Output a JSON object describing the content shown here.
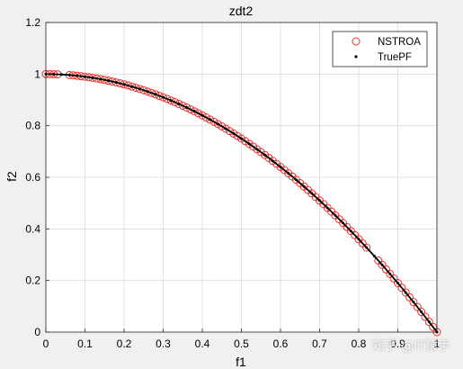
{
  "watermark": "知乎 @IT猿手",
  "chart_data": {
    "type": "scatter",
    "title": "zdt2",
    "xlabel": "f1",
    "ylabel": "f2",
    "xlim": [
      0,
      1
    ],
    "ylim": [
      0,
      1.2
    ],
    "xticks": [
      0,
      0.1,
      0.2,
      0.3,
      0.4,
      0.5,
      0.6,
      0.7,
      0.8,
      0.9,
      1
    ],
    "yticks": [
      0,
      0.2,
      0.4,
      0.6,
      0.8,
      1,
      1.2
    ],
    "xtick_labels": [
      "0",
      "0.1",
      "0.2",
      "0.3",
      "0.4",
      "0.5",
      "0.6",
      "0.7",
      "0.8",
      "0.9",
      "1"
    ],
    "ytick_labels": [
      "0",
      "0.2",
      "0.4",
      "0.6",
      "0.8",
      "1",
      "1.2"
    ],
    "grid": true,
    "legend_position": "top-right",
    "series": [
      {
        "name": "NSTROA",
        "marker": "circle-open",
        "color": "#e8312a",
        "x": [
          0,
          0.01,
          0.02,
          0.03,
          0.06,
          0.07,
          0.08,
          0.09,
          0.1,
          0.11,
          0.12,
          0.13,
          0.14,
          0.15,
          0.16,
          0.17,
          0.18,
          0.19,
          0.2,
          0.21,
          0.22,
          0.23,
          0.24,
          0.25,
          0.26,
          0.27,
          0.28,
          0.29,
          0.3,
          0.31,
          0.32,
          0.33,
          0.34,
          0.35,
          0.36,
          0.37,
          0.38,
          0.39,
          0.4,
          0.41,
          0.42,
          0.43,
          0.44,
          0.45,
          0.46,
          0.47,
          0.48,
          0.49,
          0.5,
          0.51,
          0.52,
          0.53,
          0.54,
          0.55,
          0.56,
          0.57,
          0.58,
          0.59,
          0.6,
          0.61,
          0.62,
          0.63,
          0.64,
          0.65,
          0.66,
          0.67,
          0.68,
          0.69,
          0.7,
          0.71,
          0.72,
          0.73,
          0.74,
          0.75,
          0.76,
          0.77,
          0.78,
          0.79,
          0.8,
          0.81,
          0.82,
          0.85,
          0.86,
          0.87,
          0.88,
          0.89,
          0.9,
          0.91,
          0.92,
          0.93,
          0.94,
          0.95,
          0.96,
          0.97,
          0.98,
          0.99,
          1
        ],
        "y": [
          1,
          0.9999,
          0.9996,
          0.9991,
          0.9964,
          0.9951,
          0.9936,
          0.9919,
          0.99,
          0.9879,
          0.9856,
          0.9831,
          0.9804,
          0.9775,
          0.9744,
          0.9711,
          0.9676,
          0.9639,
          0.96,
          0.9559,
          0.9516,
          0.9471,
          0.9424,
          0.9375,
          0.9324,
          0.9271,
          0.9216,
          0.9159,
          0.91,
          0.9039,
          0.8976,
          0.8911,
          0.8844,
          0.8775,
          0.8704,
          0.8631,
          0.8556,
          0.8479,
          0.84,
          0.8319,
          0.8236,
          0.8151,
          0.8064,
          0.7975,
          0.7884,
          0.7791,
          0.7696,
          0.7599,
          0.75,
          0.7399,
          0.7296,
          0.7191,
          0.7084,
          0.6975,
          0.6864,
          0.6751,
          0.6636,
          0.6519,
          0.64,
          0.6279,
          0.6156,
          0.6031,
          0.5904,
          0.5775,
          0.5644,
          0.5511,
          0.5376,
          0.5239,
          0.51,
          0.4959,
          0.4816,
          0.4671,
          0.4524,
          0.4375,
          0.4224,
          0.4071,
          0.3916,
          0.3759,
          0.36,
          0.3439,
          0.3276,
          0.2775,
          0.2604,
          0.2431,
          0.2256,
          0.2079,
          0.19,
          0.1719,
          0.1536,
          0.1351,
          0.1164,
          0.0975,
          0.0784,
          0.0591,
          0.0396,
          0.0199,
          0
        ]
      },
      {
        "name": "TruePF",
        "marker": "dot",
        "color": "#000000",
        "function": "f2 = 1 - f1^2",
        "x": [
          0,
          0.02,
          0.04,
          0.06,
          0.08,
          0.1,
          0.12,
          0.14,
          0.16,
          0.18,
          0.2,
          0.22,
          0.24,
          0.26,
          0.28,
          0.3,
          0.32,
          0.34,
          0.36,
          0.38,
          0.4,
          0.42,
          0.44,
          0.46,
          0.48,
          0.5,
          0.52,
          0.54,
          0.56,
          0.58,
          0.6,
          0.62,
          0.64,
          0.66,
          0.68,
          0.7,
          0.72,
          0.74,
          0.76,
          0.78,
          0.8,
          0.82,
          0.84,
          0.86,
          0.88,
          0.9,
          0.92,
          0.94,
          0.96,
          0.98,
          1
        ],
        "y": [
          1,
          0.9996,
          0.9984,
          0.9964,
          0.9936,
          0.99,
          0.9856,
          0.9804,
          0.9744,
          0.9676,
          0.96,
          0.9516,
          0.9424,
          0.9324,
          0.9216,
          0.91,
          0.8976,
          0.8844,
          0.8704,
          0.8556,
          0.84,
          0.8236,
          0.8064,
          0.7884,
          0.7696,
          0.75,
          0.7296,
          0.7084,
          0.6864,
          0.6636,
          0.64,
          0.6156,
          0.5904,
          0.5644,
          0.5376,
          0.51,
          0.4816,
          0.4524,
          0.4224,
          0.3916,
          0.36,
          0.3276,
          0.2944,
          0.2604,
          0.2256,
          0.19,
          0.1536,
          0.1164,
          0.0784,
          0.0396,
          0
        ]
      }
    ]
  }
}
